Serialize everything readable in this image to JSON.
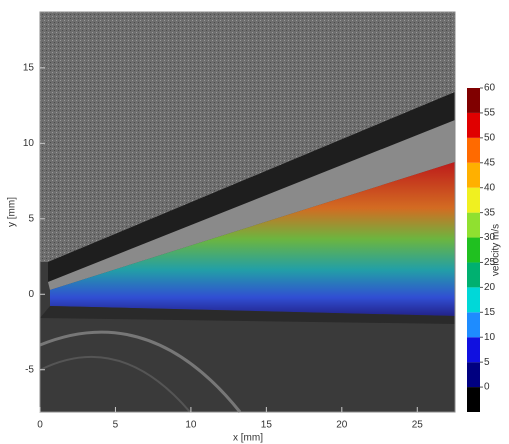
{
  "chart_data": {
    "type": "image",
    "xlabel": "x [mm]",
    "ylabel": "y [mm]",
    "xlim": [
      0,
      27.5
    ],
    "ylim": [
      -7.8,
      18.7
    ],
    "xticks": [
      0,
      5,
      10,
      15,
      20,
      25
    ],
    "yticks": [
      -5,
      0,
      5,
      10,
      15
    ],
    "colorbar": {
      "label": "velocity m/s",
      "lim": [
        -5,
        60
      ],
      "ticks": [
        0,
        5,
        10,
        15,
        20,
        25,
        30,
        35,
        40,
        45,
        50,
        55,
        60
      ],
      "bands": [
        {
          "from": -5,
          "to": 0,
          "color": "#000000"
        },
        {
          "from": 0,
          "to": 5,
          "color": "#000080"
        },
        {
          "from": 5,
          "to": 10,
          "color": "#1010e0"
        },
        {
          "from": 10,
          "to": 15,
          "color": "#1e8cff"
        },
        {
          "from": 15,
          "to": 20,
          "color": "#00d8d8"
        },
        {
          "from": 20,
          "to": 25,
          "color": "#00b070"
        },
        {
          "from": 25,
          "to": 30,
          "color": "#20c020"
        },
        {
          "from": 30,
          "to": 35,
          "color": "#90e030"
        },
        {
          "from": 35,
          "to": 40,
          "color": "#f0f020"
        },
        {
          "from": 40,
          "to": 45,
          "color": "#ffb000"
        },
        {
          "from": 45,
          "to": 50,
          "color": "#ff6a00"
        },
        {
          "from": 50,
          "to": 55,
          "color": "#e00000"
        },
        {
          "from": 55,
          "to": 60,
          "color": "#800000"
        }
      ]
    }
  }
}
